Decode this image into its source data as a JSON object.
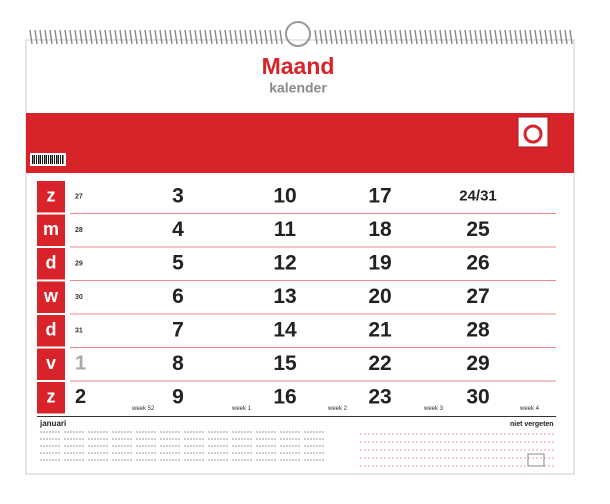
{
  "header": {
    "title": "Maand",
    "subtitle": "kalender"
  },
  "weekdays": [
    "z",
    "m",
    "d",
    "w",
    "d",
    "v",
    "z"
  ],
  "previous_days": [
    "27",
    "28",
    "29",
    "30",
    "31",
    "1",
    "2"
  ],
  "weeks": [
    [
      "3",
      "4",
      "5",
      "6",
      "7",
      "8",
      "9"
    ],
    [
      "10",
      "11",
      "12",
      "13",
      "14",
      "15",
      "16"
    ],
    [
      "17",
      "18",
      "19",
      "20",
      "21",
      "22",
      "23"
    ],
    [
      "24/31",
      "25",
      "26",
      "27",
      "28",
      "29",
      "30"
    ]
  ],
  "week_labels": [
    "week 52",
    "week 1",
    "week 2",
    "week 3",
    "week 4"
  ],
  "footer": {
    "month": "januari",
    "notes": "niet vergeten"
  }
}
